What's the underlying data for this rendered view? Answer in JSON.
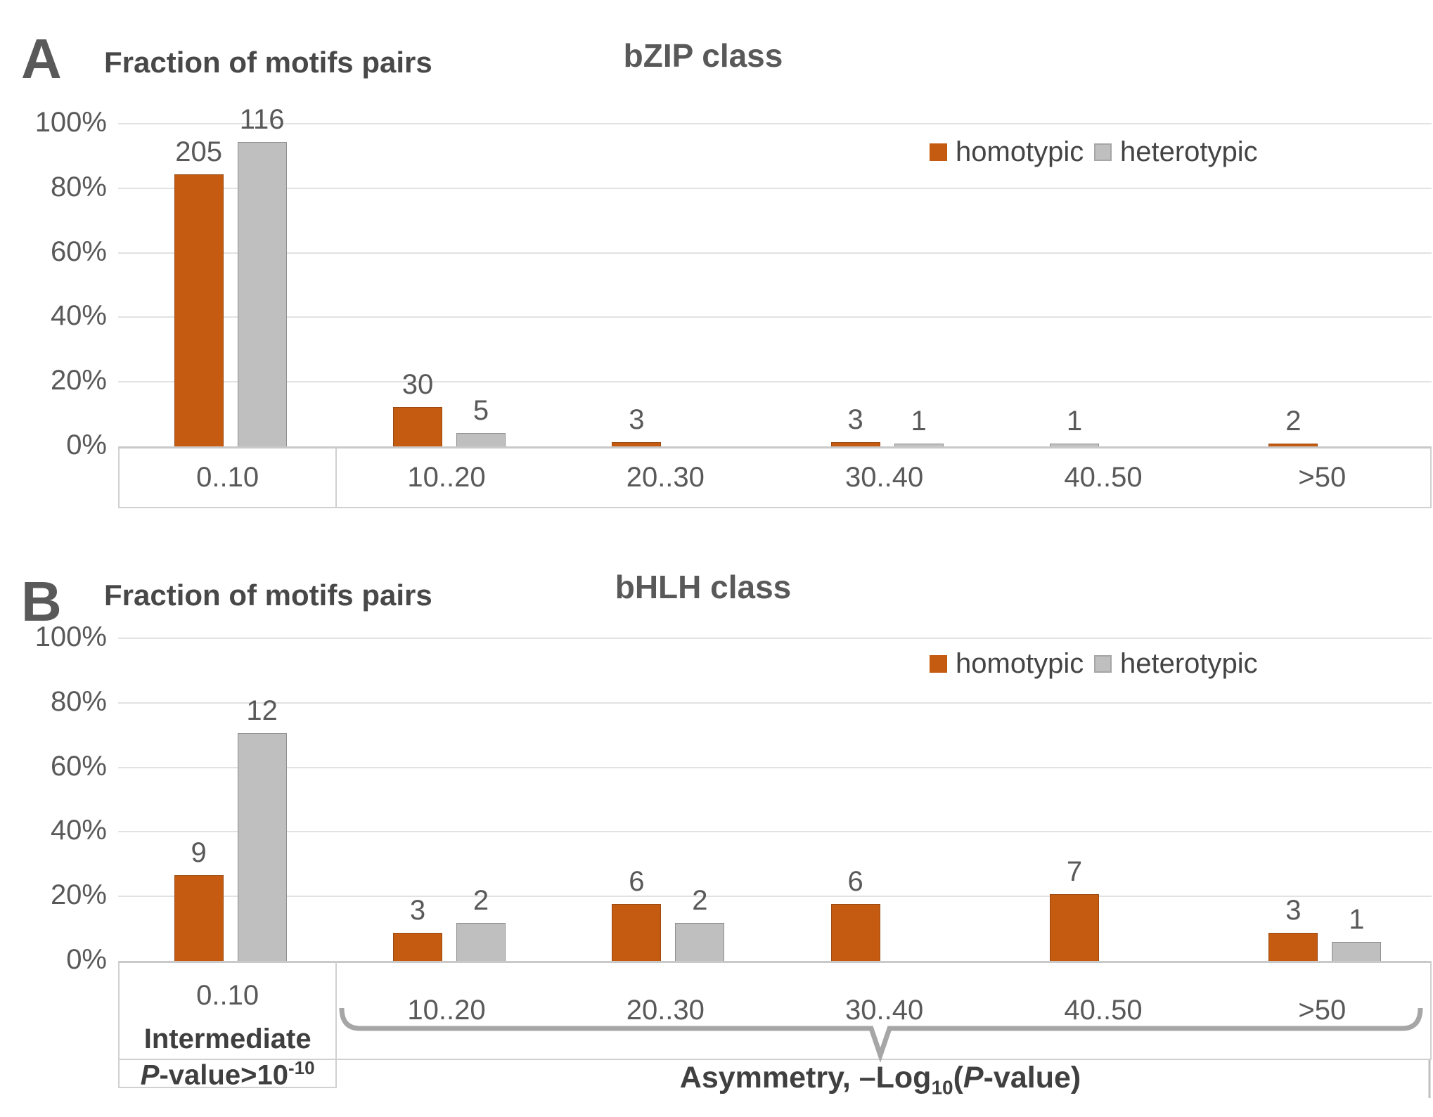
{
  "colors": {
    "homotypic": "#C55A11",
    "homotypic_border": "#9C4A10",
    "heterotypic": "#BFBFBF",
    "heterotypic_border": "#8F8F8F",
    "text": "#595959",
    "title_text": "#595959",
    "gridline": "#E2E2E2",
    "axis_box_border": "#D0D0D0",
    "bracket": "#A6A6A6"
  },
  "legend": {
    "items": [
      {
        "label": "homotypic"
      },
      {
        "label": "heterotypic"
      }
    ]
  },
  "chart_data": [
    {
      "panel_letter": "A",
      "type": "bar",
      "title": "bZIP class",
      "y_axis_title": "Fraction of motifs pairs",
      "categories": [
        "0..10",
        "10..20",
        "20..30",
        "30..40",
        "40..50",
        ">50"
      ],
      "y_ticks": [
        "100%",
        "80%",
        "60%",
        "40%",
        "20%",
        "0%"
      ],
      "ylim": [
        0,
        100
      ],
      "grid": true,
      "legend_position": "top-right",
      "series": [
        {
          "name": "homotypic",
          "counts": [
            205,
            30,
            3,
            3,
            0,
            2
          ],
          "fraction_percent": [
            84.4,
            12.3,
            1.2,
            1.2,
            0,
            0.8
          ]
        },
        {
          "name": "heterotypic",
          "counts": [
            116,
            5,
            0,
            1,
            1,
            0
          ],
          "fraction_percent": [
            94.3,
            4.1,
            0,
            0.8,
            0.8,
            0
          ]
        }
      ]
    },
    {
      "panel_letter": "B",
      "type": "bar",
      "title": "bHLH class",
      "y_axis_title": "Fraction of motifs pairs",
      "categories": [
        "0..10",
        "10..20",
        "20..30",
        "30..40",
        "40..50",
        ">50"
      ],
      "y_ticks": [
        "100%",
        "80%",
        "60%",
        "40%",
        "20%",
        "0%"
      ],
      "ylim": [
        0,
        100
      ],
      "grid": true,
      "legend_position": "top-right",
      "series": [
        {
          "name": "homotypic",
          "counts": [
            9,
            3,
            6,
            6,
            7,
            3
          ],
          "fraction_percent": [
            26.5,
            8.8,
            17.6,
            17.6,
            20.6,
            8.8
          ]
        },
        {
          "name": "heterotypic",
          "counts": [
            12,
            2,
            2,
            0,
            0,
            1
          ],
          "fraction_percent": [
            70.6,
            11.8,
            11.8,
            0,
            0,
            5.9
          ]
        }
      ],
      "first_category_note": {
        "line1": "Intermediate",
        "line2_italic": "P",
        "line2_text": "-value>10",
        "line2_sup": "-10"
      },
      "x_axis_label": {
        "text_before_sub": "Asymmetry, –Log",
        "sub": "10",
        "text_open": "(",
        "italic": "P",
        "text_end": "-value)"
      }
    }
  ]
}
